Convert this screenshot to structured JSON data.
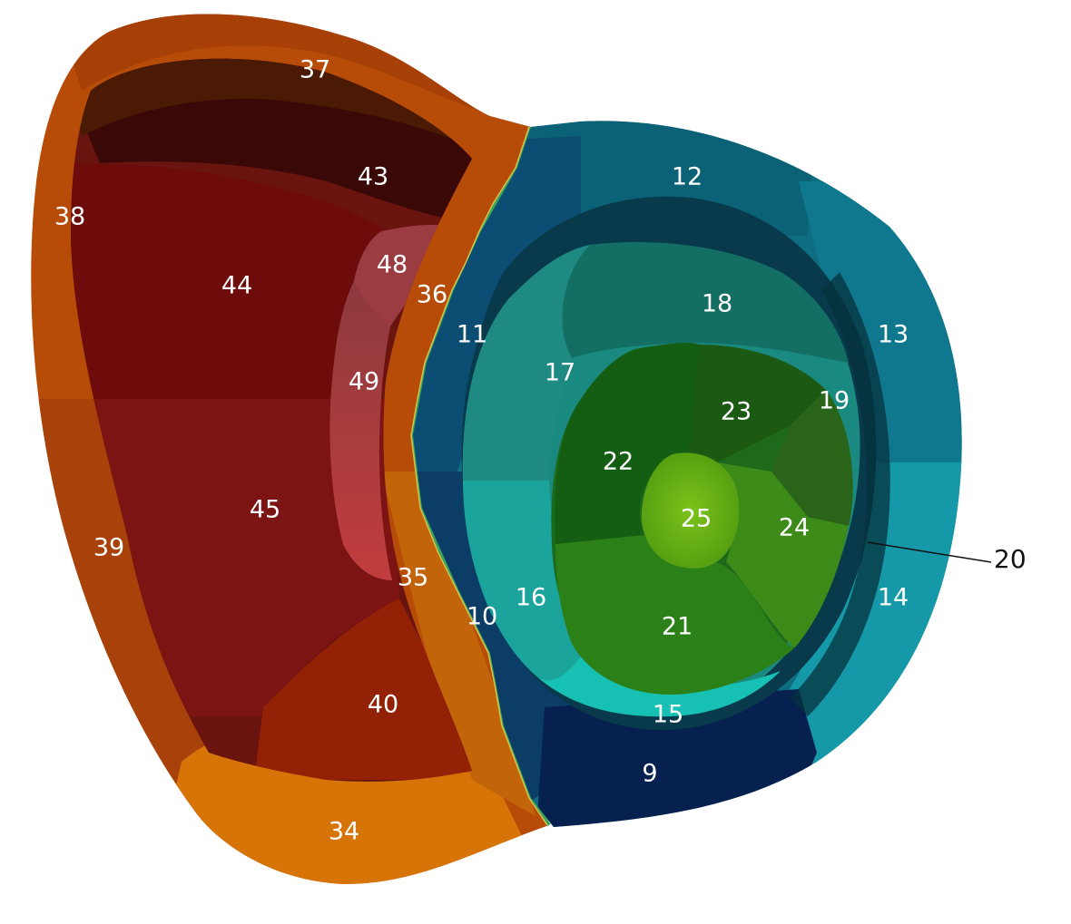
{
  "segments": {
    "s9": "9",
    "s10": "10",
    "s11": "11",
    "s12": "12",
    "s13": "13",
    "s14": "14",
    "s15": "15",
    "s16": "16",
    "s17": "17",
    "s18": "18",
    "s19": "19",
    "s20": "20",
    "s21": "21",
    "s22": "22",
    "s23": "23",
    "s24": "24",
    "s25": "25",
    "s34": "34",
    "s35": "35",
    "s36": "36",
    "s37": "37",
    "s38": "38",
    "s39": "39",
    "s40": "40",
    "s43": "43",
    "s44": "44",
    "s45": "45",
    "s48": "48",
    "s49": "49"
  }
}
